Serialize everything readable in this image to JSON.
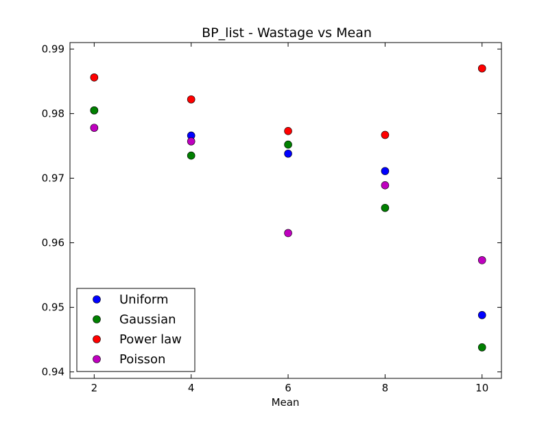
{
  "chart_data": {
    "type": "scatter",
    "title": "BP_list - Wastage vs Mean",
    "xlabel": "Mean",
    "ylabel": "",
    "xlim": [
      1.5,
      10.4
    ],
    "ylim": [
      0.939,
      0.991
    ],
    "x_ticks": [
      2,
      4,
      6,
      8,
      10
    ],
    "y_ticks": [
      0.94,
      0.95,
      0.96,
      0.97,
      0.98,
      0.99
    ],
    "x_tick_labels": [
      "2",
      "4",
      "6",
      "8",
      "10"
    ],
    "y_tick_labels": [
      "0.94",
      "0.95",
      "0.96",
      "0.97",
      "0.98",
      "0.99"
    ],
    "grid": false,
    "legend_position": "lower-left",
    "x": [
      2,
      4,
      6,
      8,
      10
    ],
    "series": [
      {
        "name": "Uniform",
        "color": "#0000ff",
        "values": [
          0.9805,
          0.9766,
          0.9738,
          0.9711,
          0.9488
        ]
      },
      {
        "name": "Gaussian",
        "color": "#008000",
        "values": [
          0.9805,
          0.9735,
          0.9752,
          0.9654,
          0.9438
        ]
      },
      {
        "name": "Power law",
        "color": "#ff0000",
        "values": [
          0.9856,
          0.9822,
          0.9773,
          0.9767,
          0.987
        ]
      },
      {
        "name": "Poisson",
        "color": "#bf00bf",
        "values": [
          0.9778,
          0.9757,
          0.9615,
          0.9689,
          0.9573
        ]
      }
    ]
  }
}
